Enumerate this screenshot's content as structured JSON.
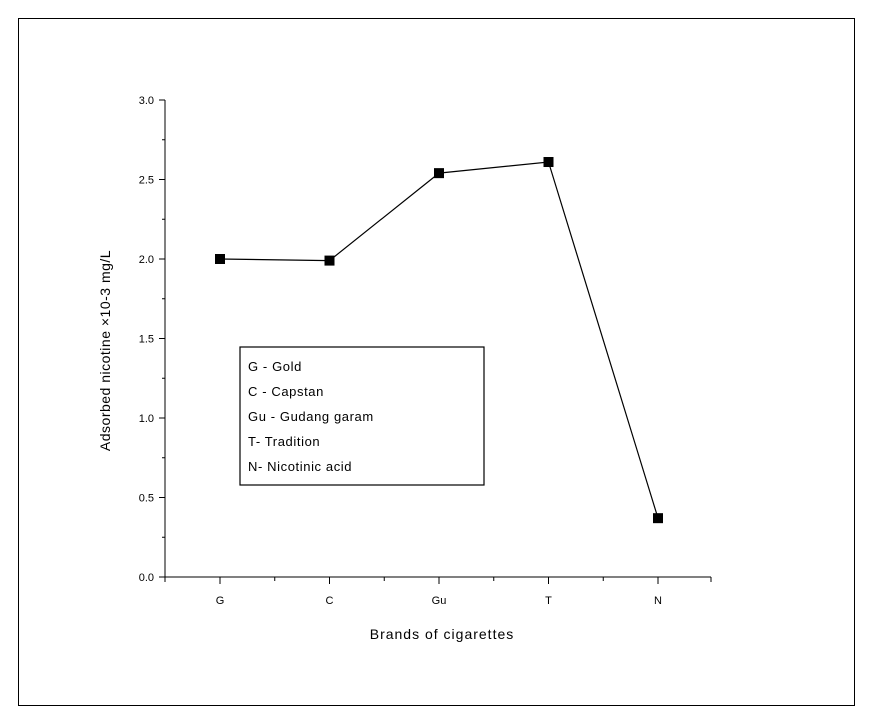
{
  "chart_data": {
    "type": "line",
    "categories": [
      "G",
      "C",
      "Gu",
      "T",
      "N"
    ],
    "series": [
      {
        "values": [
          2.0,
          1.99,
          2.54,
          2.61,
          0.37
        ]
      }
    ],
    "title": "",
    "xlabel": "Brands of cigarettes",
    "ylabel": "Adsorbed nicotine ×10-3 mg/L",
    "ylim": [
      0.0,
      3.0
    ],
    "yticks": [
      "0.0",
      "0.5",
      "1.0",
      "1.5",
      "2.0",
      "2.5",
      "3.0"
    ],
    "grid": false,
    "marker": "square",
    "line_color": "#000000",
    "annotation_box": [
      "G - Gold",
      "C - Capstan",
      "Gu - Gudang garam",
      "T- Tradition",
      "N- Nicotinic acid"
    ]
  }
}
